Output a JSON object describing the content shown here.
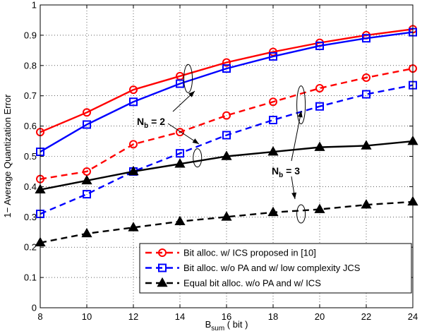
{
  "chart_data": {
    "type": "line",
    "xlabel_main": "B",
    "xlabel_sub": "sum",
    "xlabel_rest": " ( bit )",
    "ylabel": "1− Average Quantization Error",
    "xlim": [
      8,
      24
    ],
    "ylim": [
      0,
      1
    ],
    "xticks": [
      "8",
      "10",
      "12",
      "14",
      "16",
      "18",
      "20",
      "22",
      "24"
    ],
    "yticks": [
      "0",
      "0.1",
      "0.2",
      "0.3",
      "0.4",
      "0.5",
      "0.6",
      "0.7",
      "0.8",
      "0.9",
      "1"
    ],
    "grid": true,
    "legend_position": "bottom-right",
    "x": [
      8,
      10,
      12,
      14,
      16,
      18,
      20,
      22,
      24
    ],
    "series": [
      {
        "name": "Bit alloc. w/ ICS proposed in [10]",
        "group": "Nb=2",
        "color": "#ff0000",
        "marker": "circle",
        "dash": false,
        "in_legend": false,
        "values": [
          0.58,
          0.645,
          0.72,
          0.765,
          0.81,
          0.845,
          0.875,
          0.9,
          0.92
        ]
      },
      {
        "name": "Bit alloc. w/o PA and w/ low complexity JCS",
        "group": "Nb=2",
        "color": "#0000ff",
        "marker": "square",
        "dash": false,
        "in_legend": false,
        "values": [
          0.515,
          0.605,
          0.68,
          0.74,
          0.79,
          0.83,
          0.865,
          0.89,
          0.91
        ]
      },
      {
        "name": "Bit alloc. w/ ICS proposed in [10]",
        "group": "Nb=3",
        "color": "#ff0000",
        "marker": "circle",
        "dash": true,
        "in_legend": true,
        "values": [
          0.425,
          0.45,
          0.54,
          0.58,
          0.635,
          0.68,
          0.725,
          0.76,
          0.79
        ]
      },
      {
        "name": "Bit alloc. w/o PA and w/ low complexity JCS",
        "group": "Nb=3",
        "color": "#0000ff",
        "marker": "square",
        "dash": true,
        "in_legend": true,
        "values": [
          0.31,
          0.375,
          0.45,
          0.51,
          0.57,
          0.62,
          0.665,
          0.705,
          0.735
        ]
      },
      {
        "name": "Equal bit alloc. w/o PA and w/ ICS",
        "group": "Nb=2",
        "color": "#000000",
        "marker": "triangle",
        "dash": false,
        "in_legend": false,
        "values": [
          0.39,
          0.42,
          0.45,
          0.475,
          0.5,
          0.515,
          0.53,
          0.535,
          0.55
        ]
      },
      {
        "name": "Equal bit alloc. w/o PA and w/ ICS",
        "group": "Nb=3",
        "color": "#000000",
        "marker": "triangle",
        "dash": true,
        "in_legend": true,
        "values": [
          0.215,
          0.245,
          0.265,
          0.285,
          0.3,
          0.315,
          0.325,
          0.34,
          0.35
        ]
      }
    ],
    "annotations": [
      {
        "label_main": "N",
        "label_sub": "b",
        "label_rest": " = 2"
      },
      {
        "label_main": "N",
        "label_sub": "b",
        "label_rest": " = 3"
      }
    ]
  }
}
